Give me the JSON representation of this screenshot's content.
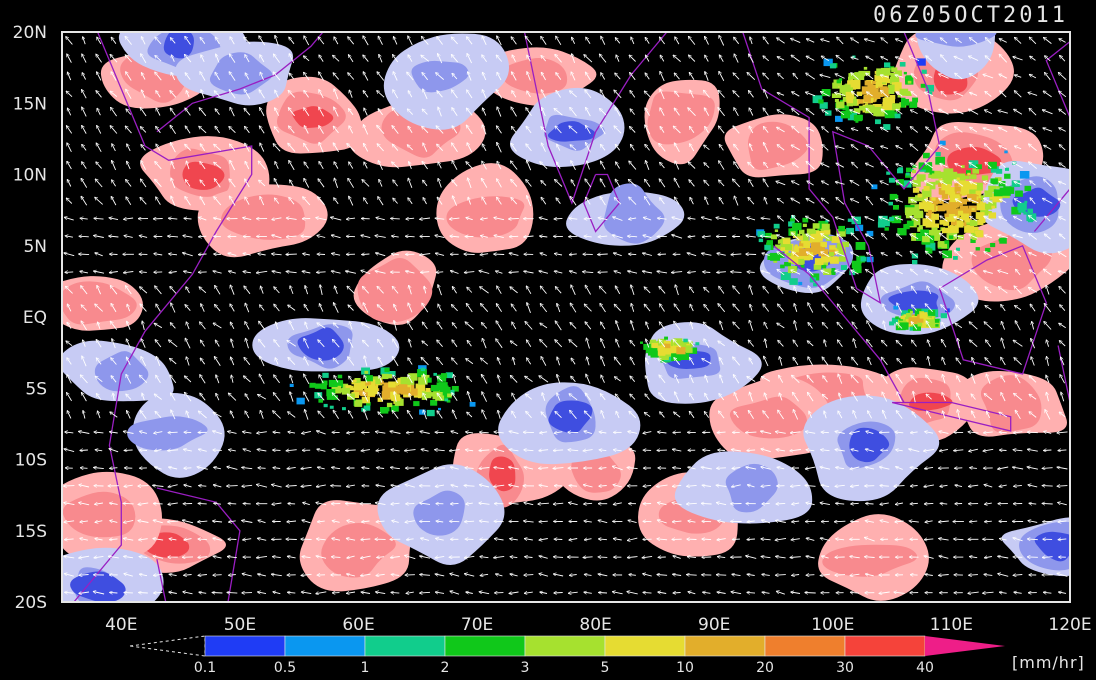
{
  "title": "06Z05OCT2011",
  "lat_labels": [
    "20N",
    "15N",
    "10N",
    "5N",
    "EQ",
    "5S",
    "10S",
    "15S",
    "20S"
  ],
  "lon_labels": [
    "40E",
    "50E",
    "60E",
    "70E",
    "80E",
    "90E",
    "100E",
    "110E",
    "120E"
  ],
  "colorbar": {
    "unit": "[mm/hr]",
    "labels": [
      "0.1",
      "0.5",
      "1",
      "2",
      "3",
      "5",
      "10",
      "20",
      "30",
      "40"
    ],
    "colors": [
      "#1f3cf5",
      "#0a97f0",
      "#11cd8c",
      "#10c81a",
      "#a6e12f",
      "#e6dc32",
      "#e2ae2b",
      "#ef7f2d",
      "#f5433a",
      "#ee1e88"
    ]
  },
  "colors": {
    "background": "#000000",
    "positive_anomaly": "#ffb0b0",
    "positive_strong": "#f0464f",
    "negative_anomaly": "#c7cbf4",
    "negative_strong": "#3f4ee0",
    "wind_vector": "#ffffff",
    "coastline": "#9a1ec2"
  },
  "chart_data": {
    "type": "heatmap",
    "title": "06Z05OCT2011",
    "x_range": [
      35,
      120
    ],
    "y_range": [
      -20,
      20
    ],
    "x_ticks": [
      40,
      50,
      60,
      70,
      80,
      90,
      100,
      110,
      120
    ],
    "y_ticks": [
      20,
      15,
      10,
      5,
      0,
      -5,
      -10,
      -15,
      -20
    ],
    "colorbar_unit": "[mm/hr]",
    "colorbar_levels": [
      0.1,
      0.5,
      1,
      2,
      3,
      5,
      10,
      20,
      30,
      40
    ],
    "features": {
      "positive_regions": [
        {
          "lon": 47,
          "lat": 10,
          "strength": 2
        },
        {
          "lon": 56,
          "lat": 14,
          "strength": 2
        },
        {
          "lon": 43,
          "lat": 17,
          "strength": 1
        },
        {
          "lon": 65,
          "lat": 13,
          "strength": 1
        },
        {
          "lon": 71,
          "lat": 7,
          "strength": 1
        },
        {
          "lon": 75,
          "lat": 17,
          "strength": 1
        },
        {
          "lon": 87,
          "lat": 14,
          "strength": 1
        },
        {
          "lon": 95,
          "lat": 12,
          "strength": 1
        },
        {
          "lon": 110,
          "lat": 17,
          "strength": 2
        },
        {
          "lon": 112,
          "lat": 11,
          "strength": 2
        },
        {
          "lon": 38,
          "lat": 1,
          "strength": 1
        },
        {
          "lon": 52,
          "lat": 7,
          "strength": 1
        },
        {
          "lon": 63,
          "lat": 2,
          "strength": 1
        },
        {
          "lon": 72,
          "lat": -11,
          "strength": 2
        },
        {
          "lon": 80,
          "lat": -11,
          "strength": 1
        },
        {
          "lon": 44,
          "lat": -16,
          "strength": 2
        },
        {
          "lon": 38,
          "lat": -14,
          "strength": 1
        },
        {
          "lon": 100,
          "lat": -5,
          "strength": 1
        },
        {
          "lon": 108,
          "lat": -6,
          "strength": 2
        },
        {
          "lon": 115,
          "lat": -6,
          "strength": 1
        },
        {
          "lon": 95,
          "lat": -7,
          "strength": 1
        },
        {
          "lon": 60,
          "lat": -16,
          "strength": 1
        },
        {
          "lon": 88,
          "lat": -14,
          "strength": 1
        },
        {
          "lon": 103,
          "lat": -17,
          "strength": 1
        },
        {
          "lon": 115,
          "lat": 4,
          "strength": 1
        }
      ],
      "negative_regions": [
        {
          "lon": 57,
          "lat": -2,
          "strength": 2
        },
        {
          "lon": 78,
          "lat": -7,
          "strength": 2
        },
        {
          "lon": 88,
          "lat": -3,
          "strength": 2
        },
        {
          "lon": 78,
          "lat": 13,
          "strength": 2
        },
        {
          "lon": 45,
          "lat": 19,
          "strength": 2
        },
        {
          "lon": 40,
          "lat": -4,
          "strength": 1
        },
        {
          "lon": 50,
          "lat": 17,
          "strength": 1
        },
        {
          "lon": 98,
          "lat": 4,
          "strength": 2
        },
        {
          "lon": 107,
          "lat": 1,
          "strength": 2
        },
        {
          "lon": 117,
          "lat": 8,
          "strength": 2
        },
        {
          "lon": 103,
          "lat": -9,
          "strength": 2
        },
        {
          "lon": 119,
          "lat": -16,
          "strength": 2
        },
        {
          "lon": 38,
          "lat": -19,
          "strength": 2
        },
        {
          "lon": 110,
          "lat": 20,
          "strength": 1
        },
        {
          "lon": 67,
          "lat": -14,
          "strength": 1
        },
        {
          "lon": 93,
          "lat": -12,
          "strength": 1
        },
        {
          "lon": 83,
          "lat": 7,
          "strength": 1
        },
        {
          "lon": 67,
          "lat": 17,
          "strength": 1
        },
        {
          "lon": 44,
          "lat": -8,
          "strength": 1
        }
      ],
      "precipitation_clusters": [
        {
          "lon": 62,
          "lat": -5,
          "spread_lon": 9,
          "spread_lat": 2
        },
        {
          "lon": 86,
          "lat": -2,
          "spread_lon": 3,
          "spread_lat": 1
        },
        {
          "lon": 98,
          "lat": 5,
          "spread_lon": 6,
          "spread_lat": 3
        },
        {
          "lon": 110,
          "lat": 8,
          "spread_lon": 8,
          "spread_lat": 5
        },
        {
          "lon": 103,
          "lat": 16,
          "spread_lon": 6,
          "spread_lat": 3
        },
        {
          "lon": 107,
          "lat": 0,
          "spread_lon": 3,
          "spread_lat": 1
        }
      ]
    }
  }
}
